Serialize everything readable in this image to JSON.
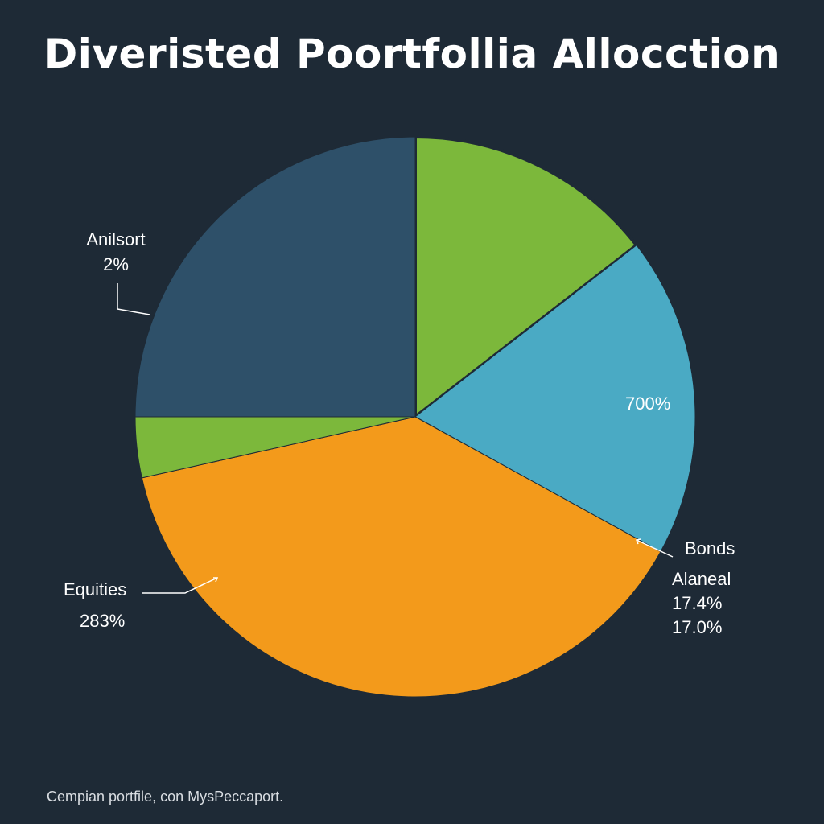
{
  "chart_data": {
    "type": "pie",
    "title": "Diveristed Poortfollia Allocction",
    "start_angle_deg": 0,
    "slices": [
      {
        "value": 14.5,
        "color": "#7cb83b"
      },
      {
        "value": 18.5,
        "color": "#4aaac4"
      },
      {
        "value": 38.5,
        "color": "#f39a1b"
      },
      {
        "value": 3.5,
        "color": "#7cb83b"
      },
      {
        "value": 25.0,
        "color": "#2e5069"
      }
    ],
    "annotations": [
      {
        "label": "Anilsort",
        "value": "2%"
      },
      {
        "label": "",
        "value": "700%"
      },
      {
        "label": "Bonds",
        "value": ""
      },
      {
        "label": "Alaneal",
        "values": [
          "17.4%",
          "17.0%"
        ]
      },
      {
        "label": "Equities",
        "value": "283%"
      }
    ]
  },
  "footer": "Cempian portfile, con MysPeccaport.",
  "colors": {
    "background": "#1e2a36",
    "leader_line": "#ffffff"
  }
}
